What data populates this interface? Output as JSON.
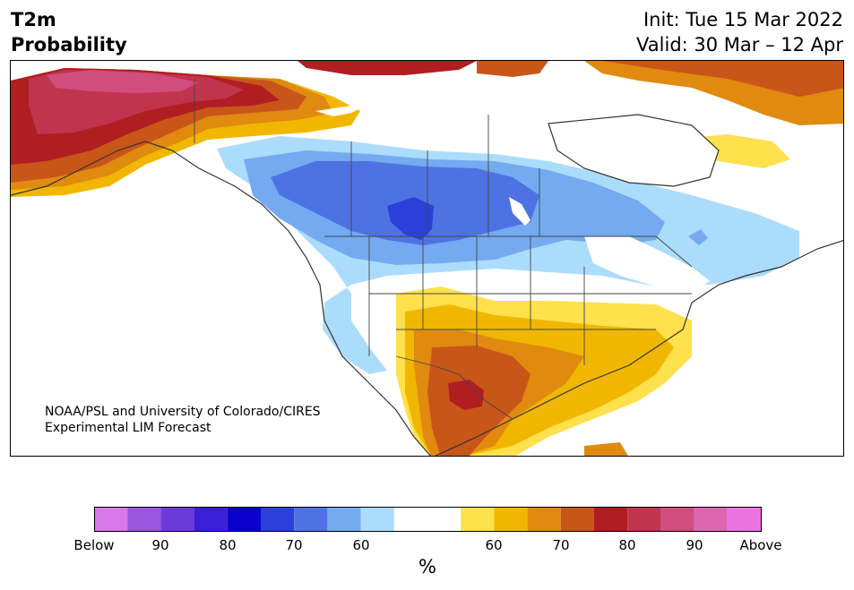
{
  "header": {
    "title_line1": "T2m",
    "title_line2": "Probability",
    "init_text": "Init: Tue 15 Mar 2022",
    "valid_text": "Valid: 30 Mar – 12 Apr"
  },
  "map": {
    "credit_line1": "NOAA/PSL and University of Colorado/CIRES",
    "credit_line2": "Experimental LIM Forecast",
    "palette": {
      "below_40": "#d978e8",
      "below_90": "#9b56e0",
      "below_85": "#6c3ad8",
      "below_80": "#3a1fd6",
      "below_75": "#0a00cc",
      "below_70": "#2a40d8",
      "below_65": "#4f72e3",
      "below_60": "#74aaf0",
      "below_55": "#acdcfc",
      "neutral": "#ffffff",
      "above_55": "#ffe04d",
      "above_60": "#f1b700",
      "above_65": "#e08a10",
      "above_70": "#c95619",
      "above_75": "#b01e22",
      "above_80": "#c0344e",
      "above_85": "#d04d7d",
      "above_90": "#de66b0",
      "above_95": "#e974e0"
    }
  },
  "colorbar": {
    "unit_label": "%",
    "tick_labels": [
      "Below",
      "90",
      "80",
      "70",
      "60",
      "",
      "60",
      "70",
      "80",
      "90",
      "Above"
    ]
  }
}
